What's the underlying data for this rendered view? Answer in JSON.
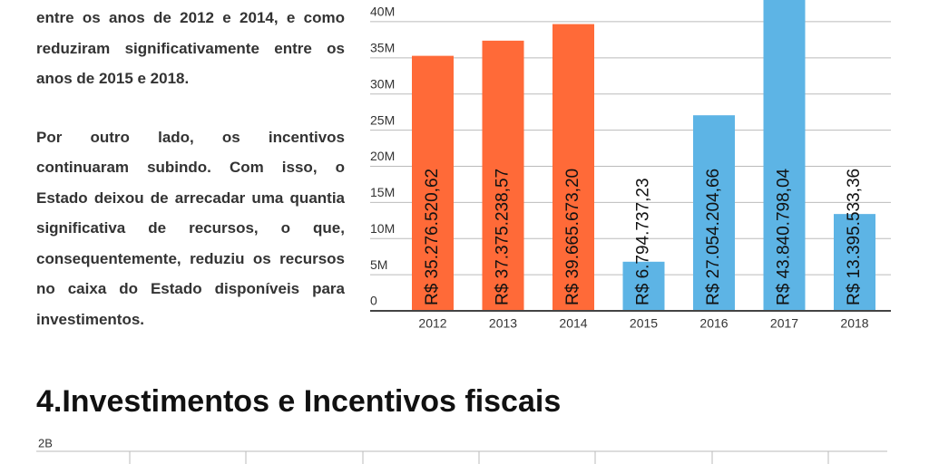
{
  "text": {
    "paragraphs": [
      "entre os anos de 2012 e 2014, e como reduziram significativamente entre os anos de 2015 e 2018.",
      "Por outro lado, os incentivos continuaram subindo. Com isso, o Estado deixou de arrecadar uma quantia significativa de recursos, o que, consequentemente, reduziu os recursos no caixa do Estado disponíveis para investimentos."
    ]
  },
  "chart_data": {
    "type": "bar",
    "categories": [
      "2012",
      "2013",
      "2014",
      "2015",
      "2016",
      "2017",
      "2018"
    ],
    "values": [
      35276520.62,
      37375238.57,
      39665673.2,
      6794737.23,
      27054204.66,
      43840798.04,
      13395533.36
    ],
    "value_labels": [
      "R$ 35.276.520,62",
      "R$ 37.375.238,57",
      "R$ 39.665.673,20",
      "R$ 6.794.737,23",
      "R$ 27.054.204,66",
      "R$ 43.840.798,04",
      "R$ 13.395.533,36"
    ],
    "colors": [
      "#ff6a38",
      "#ff6a38",
      "#ff6a38",
      "#5db4e5",
      "#5db4e5",
      "#5db4e5",
      "#5db4e5"
    ],
    "ylim": [
      0,
      43000000
    ],
    "yticks": [
      0,
      {
        "value": 5000000,
        "label": "5M"
      },
      {
        "value": 10000000,
        "label": "10M"
      },
      {
        "value": 15000000,
        "label": "15M"
      },
      {
        "value": 20000000,
        "label": "20M"
      },
      {
        "value": 25000000,
        "label": "25M"
      },
      {
        "value": 30000000,
        "label": "30M"
      },
      {
        "value": 35000000,
        "label": "35M"
      },
      {
        "value": 40000000,
        "label": "40M"
      }
    ],
    "grid": true
  },
  "section": {
    "heading": "4.Investimentos e Incentivos fiscais"
  },
  "next_chart": {
    "ytick_label": "2B"
  }
}
